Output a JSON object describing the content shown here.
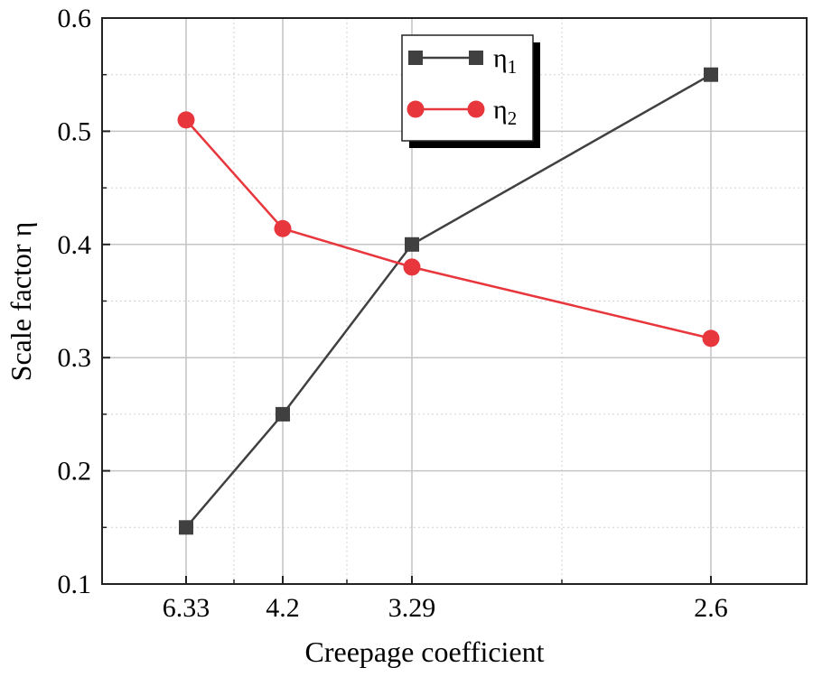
{
  "chart_data": {
    "type": "line",
    "title": "",
    "xlabel": "Creepage coefficient",
    "ylabel": "Scale factor η",
    "x": [
      6.33,
      4.2,
      3.29,
      2.6
    ],
    "x_tick_labels": [
      "6.33",
      "4.2",
      "3.29",
      "2.6"
    ],
    "x_axis": "reversed, non-linear spacing",
    "ylim": [
      0.1,
      0.6
    ],
    "y_ticks": [
      0.1,
      0.2,
      0.3,
      0.4,
      0.5,
      0.6
    ],
    "y_tick_labels": [
      "0.1",
      "0.2",
      "0.3",
      "0.4",
      "0.5",
      "0.6"
    ],
    "grid": true,
    "legend_position": "top-center",
    "series": [
      {
        "name": "η",
        "subscript": "1",
        "marker": "square",
        "color": "#404040",
        "values": [
          0.15,
          0.25,
          0.4,
          0.55
        ]
      },
      {
        "name": "η",
        "subscript": "2",
        "marker": "circle",
        "color": "#e8363d",
        "values": [
          0.51,
          0.414,
          0.38,
          0.317
        ]
      }
    ]
  }
}
